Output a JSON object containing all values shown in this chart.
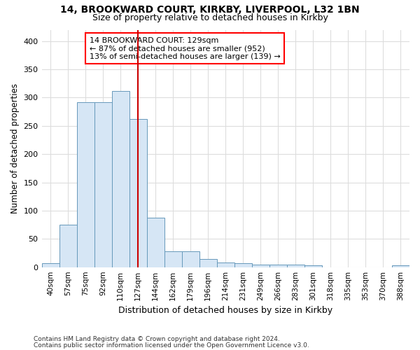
{
  "title1": "14, BROOKWARD COURT, KIRKBY, LIVERPOOL, L32 1BN",
  "title2": "Size of property relative to detached houses in Kirkby",
  "xlabel": "Distribution of detached houses by size in Kirkby",
  "ylabel": "Number of detached properties",
  "bar_color": "#d6e6f5",
  "bar_edge_color": "#6699bb",
  "vline_color": "#cc0000",
  "categories": [
    "40sqm",
    "57sqm",
    "75sqm",
    "92sqm",
    "110sqm",
    "127sqm",
    "144sqm",
    "162sqm",
    "179sqm",
    "196sqm",
    "214sqm",
    "231sqm",
    "249sqm",
    "266sqm",
    "283sqm",
    "301sqm",
    "318sqm",
    "335sqm",
    "353sqm",
    "370sqm",
    "388sqm"
  ],
  "values": [
    7,
    75,
    292,
    292,
    312,
    262,
    87,
    28,
    28,
    14,
    8,
    7,
    5,
    5,
    5,
    3,
    0,
    0,
    0,
    0,
    3
  ],
  "annotation_title": "14 BROOKWARD COURT: 129sqm",
  "annotation_line1": "← 87% of detached houses are smaller (952)",
  "annotation_line2": "13% of semi-detached houses are larger (139) →",
  "vline_x": 5,
  "ylim": [
    0,
    420
  ],
  "yticks": [
    0,
    50,
    100,
    150,
    200,
    250,
    300,
    350,
    400
  ],
  "footnote1": "Contains HM Land Registry data © Crown copyright and database right 2024.",
  "footnote2": "Contains public sector information licensed under the Open Government Licence v3.0.",
  "background_color": "#ffffff",
  "plot_bg_color": "#ffffff",
  "grid_color": "#dddddd"
}
